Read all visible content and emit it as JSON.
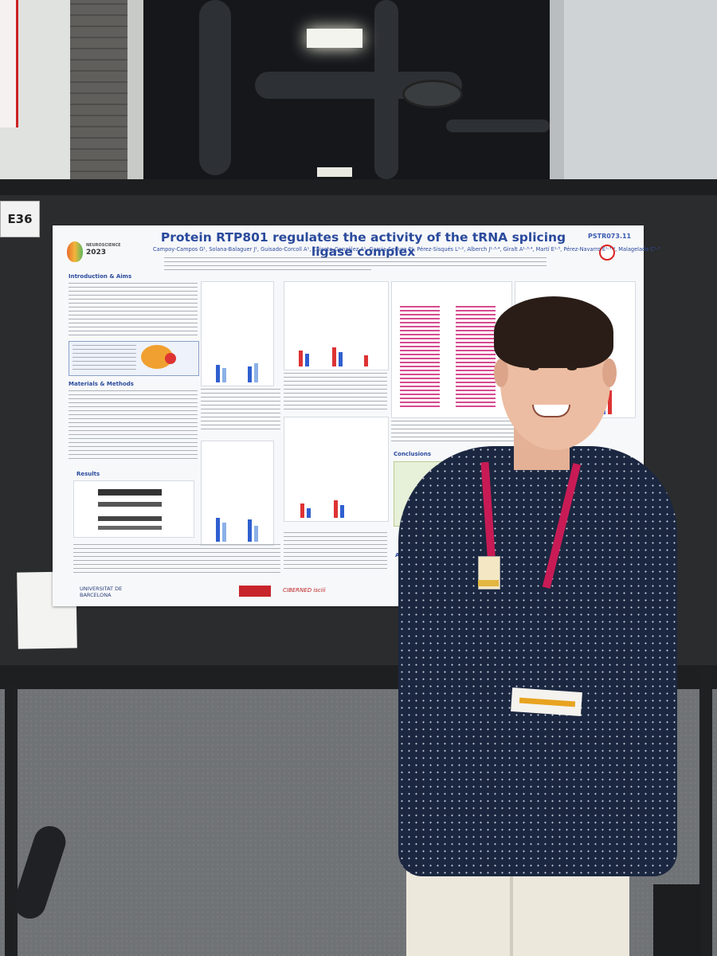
{
  "booth_number": "E36",
  "poster": {
    "title": "Protein RTP801 regulates the activity of the tRNA splicing ligase complex",
    "tag": "PSTR073.11",
    "conference_logo": {
      "line1": "NEUROSCIENCE",
      "line2": "2023"
    },
    "authors": "Campoy-Campos G¹, Solana-Balaguer J¹, Guisado-Corcoll A¹, Chicote-González A¹, Garcia-Segura P¹, Pérez-Sisqués L¹·², Alberch J¹·³·⁴, Giralt A¹·³·⁴, Martí E¹·⁵, Pérez-Navarro E¹·³·⁴, Malagelada C¹·³",
    "sections": {
      "intro": "Introduction & Aims",
      "methods": "Materials & Methods",
      "results": "Results",
      "conclusions": "Conclusions",
      "acknowledgements": "Ackn"
    },
    "footer": {
      "university": "UNIVERSITAT DE BARCELONA",
      "ciber": "CIBERNED isciii"
    }
  },
  "colors": {
    "title_blue": "#2a4a9c",
    "lanyard": "#c81b55",
    "shirt": "#1b2740",
    "board": "#2b2c2e"
  }
}
